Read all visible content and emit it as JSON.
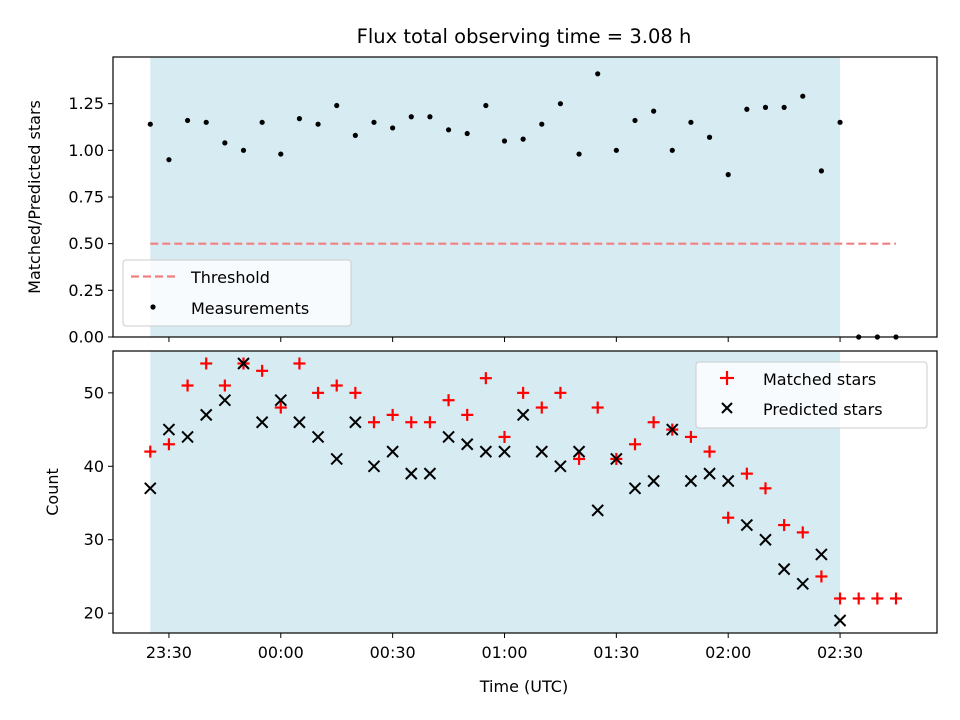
{
  "figure": {
    "title": "Flux total observing time = 3.08 h",
    "xlabel": "Time (UTC)"
  },
  "colors": {
    "shade": "#add8e6",
    "threshold": "#f08080",
    "matched": "#ff0000",
    "predicted": "#000000",
    "measurements": "#000000"
  },
  "chart_data": [
    {
      "type": "scatter",
      "ylabel": "Matched/Predicted stars",
      "ylim": [
        0,
        1.5
      ],
      "xlim_minutes_from_midnight": [
        -45,
        176
      ],
      "yticks": [
        "0.00",
        "0.25",
        "0.50",
        "0.75",
        "1.00",
        "1.25"
      ],
      "ytick_values": [
        0,
        0.25,
        0.5,
        0.75,
        1.0,
        1.25
      ],
      "shaded_span": [
        "23:25",
        "02:30"
      ],
      "legend": {
        "location": "lower-left",
        "entries": [
          "Threshold",
          "Measurements"
        ]
      },
      "threshold": {
        "name": "Threshold",
        "value": 0.5,
        "x": [
          "23:25",
          "02:45"
        ]
      },
      "series": [
        {
          "name": "Measurements",
          "x": [
            "23:25",
            "23:30",
            "23:35",
            "23:40",
            "23:45",
            "23:50",
            "23:55",
            "00:00",
            "00:05",
            "00:10",
            "00:15",
            "00:20",
            "00:25",
            "00:30",
            "00:35",
            "00:40",
            "00:45",
            "00:50",
            "00:55",
            "01:00",
            "01:05",
            "01:10",
            "01:15",
            "01:20",
            "01:25",
            "01:30",
            "01:35",
            "01:40",
            "01:45",
            "01:50",
            "01:55",
            "02:00",
            "02:05",
            "02:10",
            "02:15",
            "02:20",
            "02:25",
            "02:30",
            "02:35",
            "02:40",
            "02:45"
          ],
          "values": [
            1.14,
            0.95,
            1.16,
            1.15,
            1.04,
            1.0,
            1.15,
            0.98,
            1.17,
            1.14,
            1.24,
            1.08,
            1.15,
            1.12,
            1.18,
            1.18,
            1.11,
            1.09,
            1.24,
            1.05,
            1.06,
            1.14,
            1.25,
            0.98,
            1.41,
            1.0,
            1.16,
            1.21,
            1.0,
            1.15,
            1.07,
            0.87,
            1.22,
            1.23,
            1.23,
            1.29,
            0.89,
            1.15,
            0.0,
            0.0,
            0.0
          ]
        }
      ]
    },
    {
      "type": "scatter",
      "ylabel": "Count",
      "ylim": [
        17.3,
        55.7
      ],
      "xlim_minutes_from_midnight": [
        -45,
        176
      ],
      "yticks": [
        "20",
        "30",
        "40",
        "50"
      ],
      "ytick_values": [
        20,
        30,
        40,
        50
      ],
      "xticks": [
        "23:30",
        "00:00",
        "00:30",
        "01:00",
        "01:30",
        "02:00",
        "02:30"
      ],
      "xtick_values": [
        "23:30",
        "00:00",
        "00:30",
        "01:00",
        "01:30",
        "02:00",
        "02:30"
      ],
      "shaded_span": [
        "23:25",
        "02:30"
      ],
      "legend": {
        "location": "upper-right",
        "entries": [
          "Matched stars",
          "Predicted stars"
        ]
      },
      "series": [
        {
          "name": "Matched stars",
          "marker": "+",
          "x": [
            "23:25",
            "23:30",
            "23:35",
            "23:40",
            "23:45",
            "23:50",
            "23:55",
            "00:00",
            "00:05",
            "00:10",
            "00:15",
            "00:20",
            "00:25",
            "00:30",
            "00:35",
            "00:40",
            "00:45",
            "00:50",
            "00:55",
            "01:00",
            "01:05",
            "01:10",
            "01:15",
            "01:20",
            "01:25",
            "01:30",
            "01:35",
            "01:40",
            "01:45",
            "01:50",
            "01:55",
            "02:00",
            "02:05",
            "02:10",
            "02:15",
            "02:20",
            "02:25",
            "02:30",
            "02:35",
            "02:40",
            "02:45"
          ],
          "values": [
            42,
            43,
            51,
            54,
            51,
            54,
            53,
            48,
            54,
            50,
            51,
            50,
            46,
            47,
            46,
            46,
            49,
            47,
            52,
            44,
            50,
            48,
            50,
            41,
            48,
            41,
            43,
            46,
            45,
            44,
            42,
            33,
            39,
            37,
            32,
            31,
            25,
            22,
            22,
            22,
            22
          ]
        },
        {
          "name": "Predicted stars",
          "marker": "x",
          "x": [
            "23:25",
            "23:30",
            "23:35",
            "23:40",
            "23:45",
            "23:50",
            "23:55",
            "00:00",
            "00:05",
            "00:10",
            "00:15",
            "00:20",
            "00:25",
            "00:30",
            "00:35",
            "00:40",
            "00:45",
            "00:50",
            "00:55",
            "01:00",
            "01:05",
            "01:10",
            "01:15",
            "01:20",
            "01:25",
            "01:30",
            "01:35",
            "01:40",
            "01:45",
            "01:50",
            "01:55",
            "02:00",
            "02:05",
            "02:10",
            "02:15",
            "02:20",
            "02:25",
            "02:30"
          ],
          "values": [
            37,
            45,
            44,
            47,
            49,
            54,
            46,
            49,
            46,
            44,
            41,
            46,
            40,
            42,
            39,
            39,
            44,
            43,
            42,
            42,
            47,
            42,
            40,
            42,
            34,
            41,
            37,
            38,
            45,
            38,
            39,
            38,
            32,
            30,
            26,
            24,
            28,
            19
          ]
        }
      ]
    }
  ]
}
